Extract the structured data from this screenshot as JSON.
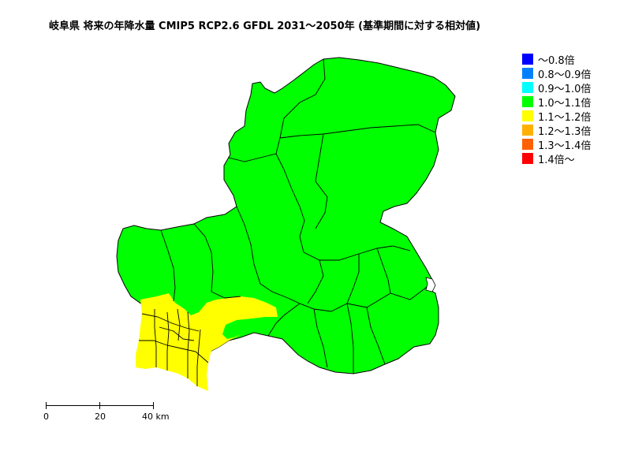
{
  "title": "岐阜県 将来の年降水量 CMIP5 RCP2.6 GFDL 2031～2050年 (基準期間に対する相対値)",
  "legend": [
    {
      "label": "～0.8倍",
      "color": "#0000ff"
    },
    {
      "label": "0.8～0.9倍",
      "color": "#0080ff"
    },
    {
      "label": "0.9～1.0倍",
      "color": "#00ffff"
    },
    {
      "label": "1.0～1.1倍",
      "color": "#00ff00"
    },
    {
      "label": "1.1～1.2倍",
      "color": "#ffff00"
    },
    {
      "label": "1.2～1.3倍",
      "color": "#ffb000"
    },
    {
      "label": "1.3～1.4倍",
      "color": "#ff6000"
    },
    {
      "label": "1.4倍～",
      "color": "#ff0000"
    }
  ],
  "scalebar": {
    "ticks": [
      "0",
      "20",
      "40 km"
    ]
  }
}
